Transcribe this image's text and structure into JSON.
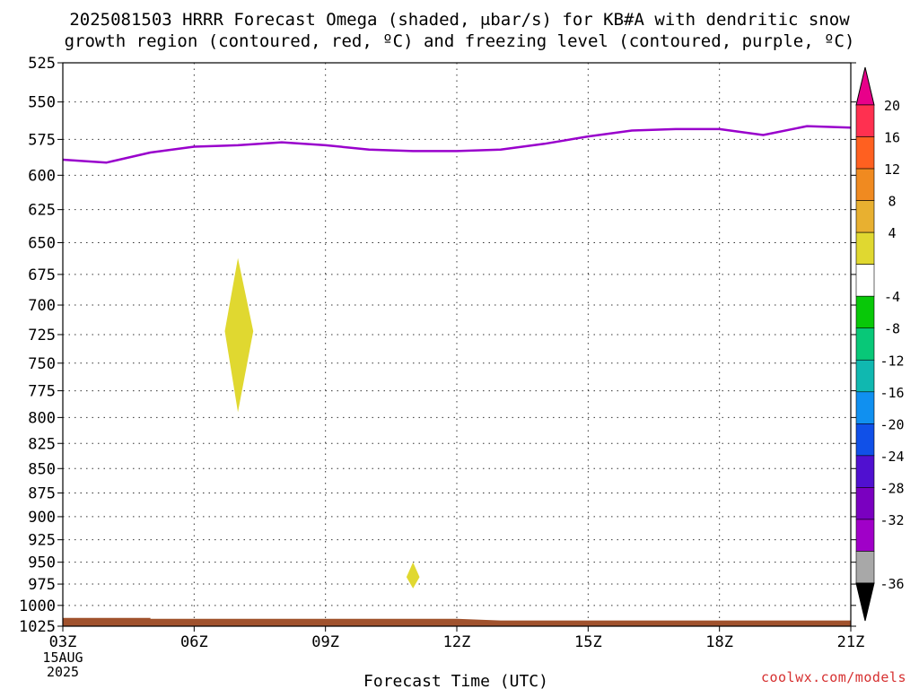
{
  "title": {
    "line1": "2025081503 HRRR Forecast Omega (shaded, μbar/s) for KB#A with dendritic snow",
    "line2": "growth region (contoured, red, ºC) and freezing level (contoured, purple, ºC)"
  },
  "credit": "coolwx.com/models",
  "chart_data": {
    "type": "area",
    "title": "2025081503 HRRR Forecast Omega (shaded, μbar/s) for KB#A with dendritic snow growth region (contoured, red, ºC) and freezing level (contoured, purple, ºC)",
    "xlabel": "Forecast Time (UTC)",
    "ylabel": "",
    "y_scale": "log-pressure (inverted)",
    "ylim": [
      1025,
      525
    ],
    "xlim_hours": [
      3,
      21
    ],
    "grid": true,
    "x_ticks": [
      {
        "hour": 3,
        "label": "03Z",
        "sub1": "15AUG",
        "sub2": "2025"
      },
      {
        "hour": 6,
        "label": "06Z"
      },
      {
        "hour": 9,
        "label": "09Z"
      },
      {
        "hour": 12,
        "label": "12Z"
      },
      {
        "hour": 15,
        "label": "15Z"
      },
      {
        "hour": 18,
        "label": "18Z"
      },
      {
        "hour": 21,
        "label": "21Z"
      }
    ],
    "y_ticks": [
      525,
      550,
      575,
      600,
      625,
      650,
      675,
      700,
      725,
      750,
      775,
      800,
      825,
      850,
      875,
      900,
      925,
      950,
      975,
      1000,
      1025
    ],
    "freezing_level": {
      "color": "#9900cc",
      "points": [
        [
          3.0,
          589
        ],
        [
          4.0,
          591
        ],
        [
          5.0,
          584
        ],
        [
          6.0,
          580
        ],
        [
          7.0,
          579
        ],
        [
          8.0,
          577
        ],
        [
          9.0,
          579
        ],
        [
          10.0,
          582
        ],
        [
          11.0,
          583
        ],
        [
          12.0,
          583
        ],
        [
          13.0,
          582
        ],
        [
          14.0,
          578
        ],
        [
          15.0,
          573
        ],
        [
          16.0,
          569
        ],
        [
          17.0,
          568
        ],
        [
          18.0,
          568
        ],
        [
          19.0,
          572
        ],
        [
          20.0,
          566
        ],
        [
          21.0,
          567
        ]
      ]
    },
    "omega_blobs": [
      {
        "color": "#e0d830",
        "points": [
          [
            7.0,
            662
          ],
          [
            7.35,
            722
          ],
          [
            7.0,
            795
          ],
          [
            6.7,
            722
          ]
        ]
      },
      {
        "color": "#e0d830",
        "points": [
          [
            11.0,
            950
          ],
          [
            11.15,
            967
          ],
          [
            11.0,
            980
          ],
          [
            10.85,
            967
          ]
        ]
      }
    ],
    "surface": {
      "color": "#a0522d",
      "points": [
        [
          3.0,
          1015
        ],
        [
          5.0,
          1015
        ],
        [
          5.0,
          1016
        ],
        [
          12.0,
          1016
        ],
        [
          13.0,
          1018
        ],
        [
          21.0,
          1018
        ]
      ]
    },
    "colorbar": {
      "labels": [
        "20",
        "16",
        "12",
        "8",
        "4",
        "-4",
        "-8",
        "-12",
        "-16",
        "-20",
        "-24",
        "-28",
        "-32",
        "-36"
      ],
      "top_color": "#e8008a",
      "bottom_color": "#000000",
      "colors": [
        "#ff3050",
        "#ff6020",
        "#f08a20",
        "#e8b030",
        "#e0d830",
        "#ffffff",
        "#08c808",
        "#08c878",
        "#10b8b0",
        "#1090f0",
        "#1050e8",
        "#5010d0",
        "#7a00c0",
        "#a000c8",
        "#a8a8a8"
      ]
    }
  }
}
